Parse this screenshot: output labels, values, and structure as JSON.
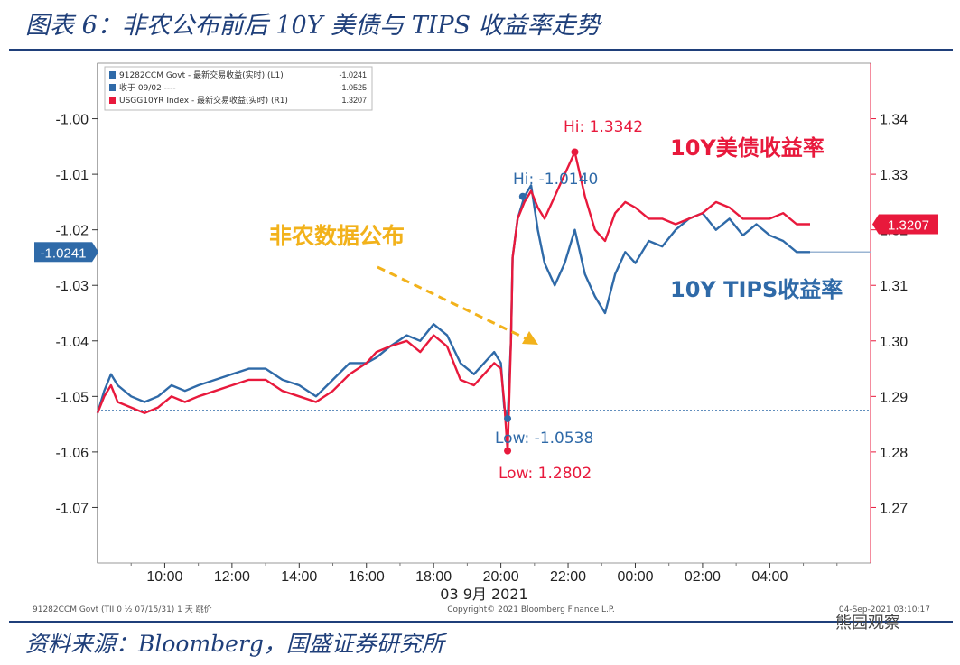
{
  "figure": {
    "title": "图表 6：非农公布前后 10Y 美债与 TIPS 收益率走势",
    "source": "资料来源：Bloomberg，国盛证券研究所",
    "watermark": "熊园观察"
  },
  "colors": {
    "tips": "#2f6aa8",
    "nominal": "#e8193c",
    "annotation_orange": "#f2b21b",
    "title_navy": "#1f3f7a"
  },
  "chart_data": {
    "type": "line",
    "title": "非农公布前后 10Y 美债与 TIPS 收益率走势",
    "x_unit": "hours since 08:00 on 03 Sep 2021",
    "x_range": [
      0,
      23
    ],
    "xticks": [
      2,
      4,
      6,
      8,
      10,
      12,
      14,
      16,
      18,
      20
    ],
    "xtick_labels": [
      "10:00",
      "12:00",
      "14:00",
      "16:00",
      "18:00",
      "20:00",
      "22:00",
      "00:00",
      "02:00",
      "04:00"
    ],
    "xlabel": "03 9月 2021",
    "y_left": {
      "range": [
        -1.08,
        -0.99
      ],
      "ticks": [
        -1.0,
        -1.01,
        -1.02,
        -1.03,
        -1.04,
        -1.05,
        -1.06,
        -1.07
      ],
      "tick_labels": [
        "-1.00",
        "-1.01",
        "-1.02",
        "-1.03",
        "-1.04",
        "-1.05",
        "-1.06",
        "-1.07"
      ],
      "current_tag": "-1.0241"
    },
    "y_right": {
      "range": [
        1.26,
        1.35
      ],
      "ticks": [
        1.34,
        1.33,
        1.32,
        1.31,
        1.3,
        1.29,
        1.28,
        1.27
      ],
      "tick_labels": [
        "1.34",
        "1.33",
        "1.32",
        "1.31",
        "1.30",
        "1.29",
        "1.28",
        "1.27"
      ],
      "current_tag": "1.3207"
    },
    "legend": {
      "placement": "top-left",
      "entries": [
        {
          "name": "91282CCM Govt - 最新交易收益(实时) (L1)",
          "value": "-1.0241",
          "color": "#2f6aa8"
        },
        {
          "name": "收于 09/02 ----",
          "value": "-1.0525",
          "color": "#2f6aa8"
        },
        {
          "name": "USGG10YR Index - 最新交易收益(实时) (R1)",
          "value": "1.3207",
          "color": "#e8193c"
        }
      ]
    },
    "reference_line": {
      "name": "收于 09/02",
      "axis": "left",
      "value": -1.0525
    },
    "series": [
      {
        "name": "10Y TIPS收益率",
        "axis": "left",
        "color": "#2f6aa8",
        "x": [
          0,
          0.2,
          0.4,
          0.6,
          1.0,
          1.4,
          1.8,
          2.2,
          2.6,
          3.0,
          3.5,
          4.0,
          4.5,
          5.0,
          5.5,
          6.0,
          6.5,
          7.0,
          7.5,
          8.0,
          8.3,
          8.7,
          9.2,
          9.6,
          10.0,
          10.4,
          10.8,
          11.2,
          11.5,
          11.8,
          12.0,
          12.1,
          12.2,
          12.3,
          12.35,
          12.5,
          12.7,
          12.9,
          13.1,
          13.3,
          13.6,
          13.9,
          14.2,
          14.5,
          14.8,
          15.1,
          15.4,
          15.7,
          16.0,
          16.4,
          16.8,
          17.2,
          17.6,
          18.0,
          18.4,
          18.8,
          19.2,
          19.6,
          20.0,
          20.4,
          20.8,
          21.2
        ],
        "values": [
          -1.053,
          -1.049,
          -1.046,
          -1.048,
          -1.05,
          -1.051,
          -1.05,
          -1.048,
          -1.049,
          -1.048,
          -1.047,
          -1.046,
          -1.045,
          -1.045,
          -1.047,
          -1.048,
          -1.05,
          -1.047,
          -1.044,
          -1.044,
          -1.043,
          -1.041,
          -1.039,
          -1.04,
          -1.037,
          -1.039,
          -1.044,
          -1.046,
          -1.044,
          -1.042,
          -1.044,
          -1.052,
          -1.054,
          -1.04,
          -1.025,
          -1.018,
          -1.014,
          -1.012,
          -1.02,
          -1.026,
          -1.03,
          -1.026,
          -1.02,
          -1.028,
          -1.032,
          -1.035,
          -1.028,
          -1.024,
          -1.026,
          -1.022,
          -1.023,
          -1.02,
          -1.018,
          -1.017,
          -1.02,
          -1.018,
          -1.021,
          -1.019,
          -1.021,
          -1.022,
          -1.024,
          -1.024
        ]
      },
      {
        "name": "10Y美债收益率",
        "axis": "right",
        "color": "#e8193c",
        "x": [
          0,
          0.2,
          0.4,
          0.6,
          1.0,
          1.4,
          1.8,
          2.2,
          2.6,
          3.0,
          3.5,
          4.0,
          4.5,
          5.0,
          5.5,
          6.0,
          6.5,
          7.0,
          7.5,
          8.0,
          8.3,
          8.7,
          9.2,
          9.6,
          10.0,
          10.4,
          10.8,
          11.2,
          11.5,
          11.8,
          12.0,
          12.1,
          12.2,
          12.3,
          12.35,
          12.5,
          12.7,
          12.9,
          13.1,
          13.3,
          13.6,
          13.9,
          14.2,
          14.5,
          14.8,
          15.1,
          15.4,
          15.7,
          16.0,
          16.4,
          16.8,
          17.2,
          17.6,
          18.0,
          18.4,
          18.8,
          19.2,
          19.6,
          20.0,
          20.4,
          20.8,
          21.2
        ],
        "values": [
          1.287,
          1.29,
          1.292,
          1.289,
          1.288,
          1.287,
          1.288,
          1.29,
          1.289,
          1.29,
          1.291,
          1.292,
          1.293,
          1.293,
          1.291,
          1.29,
          1.289,
          1.291,
          1.294,
          1.296,
          1.298,
          1.299,
          1.3,
          1.298,
          1.301,
          1.299,
          1.293,
          1.292,
          1.294,
          1.296,
          1.295,
          1.289,
          1.28,
          1.3,
          1.315,
          1.322,
          1.325,
          1.327,
          1.324,
          1.322,
          1.326,
          1.33,
          1.334,
          1.326,
          1.32,
          1.318,
          1.323,
          1.325,
          1.324,
          1.322,
          1.322,
          1.321,
          1.322,
          1.323,
          1.325,
          1.324,
          1.322,
          1.322,
          1.322,
          1.323,
          1.321,
          1.321
        ]
      }
    ],
    "annotations": {
      "nfp_release": "非农数据公布",
      "nominal_label": "10Y美债收益率",
      "tips_label": "10Y TIPS收益率",
      "tips_hi": "Hi: -1.0140",
      "tips_low": "Low: -1.0538",
      "nominal_hi": "Hi: 1.3342",
      "nominal_low": "Low: 1.2802"
    },
    "footer": {
      "left": "91282CCM Govt (TII 0 ½ 07/15/31) 1 天  跳价",
      "center": "Copyright© 2021 Bloomberg Finance L.P.",
      "right": "04-Sep-2021 03:10:17"
    }
  }
}
